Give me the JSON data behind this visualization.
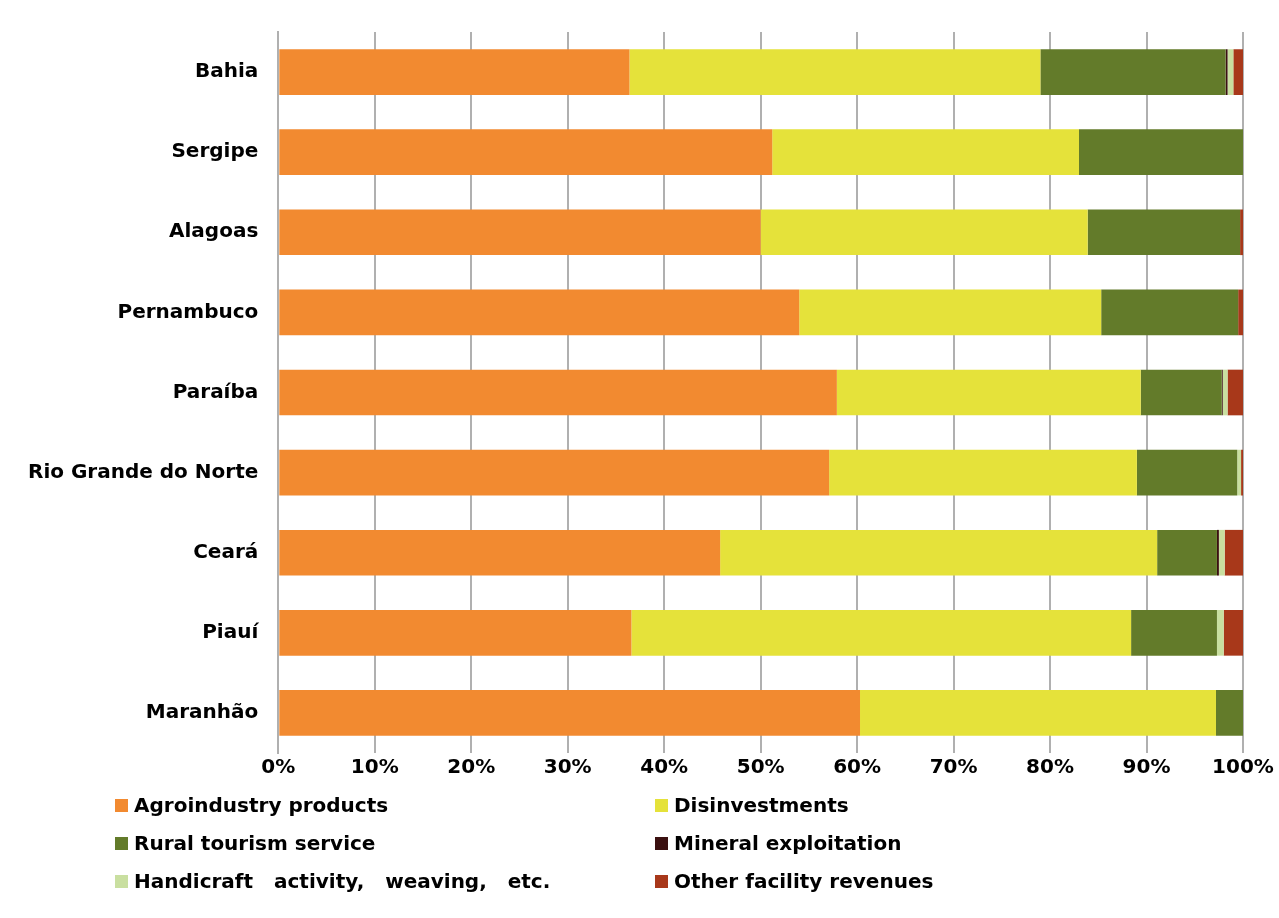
{
  "chart_data": {
    "type": "bar",
    "orientation": "horizontal",
    "stacked": true,
    "categories": [
      "Bahia",
      "Sergipe",
      "Alagoas",
      "Pernambuco",
      "Paraíba",
      "Rio Grande do Norte",
      "Ceará",
      "Piauí",
      "Maranhão"
    ],
    "series": [
      {
        "name": "Agroindustry products",
        "color": "#f28a30",
        "values": [
          36.4,
          51.2,
          50.0,
          54.0,
          57.9,
          57.1,
          45.8,
          36.6,
          60.3
        ]
      },
      {
        "name": "Disinvestments",
        "color": "#e5e23a",
        "values": [
          42.6,
          31.8,
          33.9,
          31.3,
          31.5,
          31.9,
          45.3,
          51.8,
          36.9
        ]
      },
      {
        "name": "Rural tourism service",
        "color": "#637b2a",
        "values": [
          19.2,
          17.0,
          15.8,
          14.2,
          8.4,
          10.4,
          6.2,
          8.9,
          2.8
        ]
      },
      {
        "name": "Mineral exploitation",
        "color": "#3b1010",
        "values": [
          0.2,
          null,
          null,
          null,
          0.1,
          null,
          0.2,
          null,
          null
        ]
      },
      {
        "name": "Handicraft   activity,   weaving,   etc.",
        "color": "#c9dfa0",
        "values": [
          0.6,
          null,
          null,
          null,
          0.5,
          0.4,
          0.6,
          0.7,
          null
        ]
      },
      {
        "name": "Other facility revenues",
        "color": "#a8381a",
        "values": [
          1.0,
          null,
          0.3,
          0.5,
          1.6,
          0.2,
          1.9,
          2.0,
          null
        ]
      }
    ],
    "xlim": [
      0,
      100
    ],
    "xticks": [
      {
        "value": 0,
        "label": "0%"
      },
      {
        "value": 10,
        "label": "10%"
      },
      {
        "value": 20,
        "label": "20%"
      },
      {
        "value": 30,
        "label": "30%"
      },
      {
        "value": 40,
        "label": "40%"
      },
      {
        "value": 50,
        "label": "50%"
      },
      {
        "value": 60,
        "label": "60%"
      },
      {
        "value": 70,
        "label": "70%"
      },
      {
        "value": 80,
        "label": "80%"
      },
      {
        "value": 90,
        "label": "90%"
      },
      {
        "value": 100,
        "label": "100%"
      }
    ],
    "grid": "x",
    "legend": "bottom"
  }
}
